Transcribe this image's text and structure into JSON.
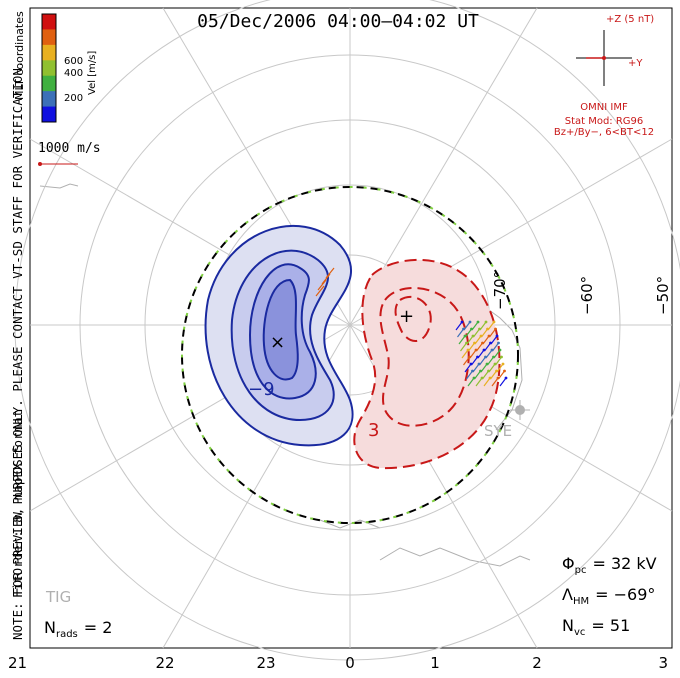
{
  "title": "05/Dec/2006 04:00–04:02 UT",
  "coord_label": "MLT coordinates",
  "scale": {
    "label": "Vel [m/s]",
    "ticks": [
      "200",
      "400",
      "600"
    ],
    "colors": [
      "#1010e0",
      "#3c70b8",
      "#40b040",
      "#90c030",
      "#e8b020",
      "#e06010",
      "#d01010"
    ]
  },
  "reference_vector": "1000 m/s",
  "watermark": "NOTE: FOR PREVIEW PURPOSES ONLY. PLEASE CONTACT VT-SD STAFF FOR VERIFICATION.",
  "fit_order": "FitOrder: 8, mapEX format",
  "imf": {
    "z_label": "+Z (5 nT)",
    "y_label": "+Y",
    "source": "OMNI IMF",
    "model_line1": "Stat Mod: RG96",
    "model_line2": "Bz+/By−, 6<BT<12"
  },
  "stats": {
    "phi_symbol": "Φ",
    "phi_sub": "pc",
    "phi_value": "= 32 kV",
    "lambda_symbol": "Λ",
    "lambda_sub": "HM",
    "lambda_value": "= −69°",
    "n_symbol": "N",
    "n_sub": "vc",
    "n_value": "= 51",
    "nrads_symbol": "N",
    "nrads_sub": "rads",
    "nrads_value": "= 2"
  },
  "stations": [
    "SYE",
    "TIG"
  ],
  "chart_data": {
    "type": "map",
    "mlt_ticks": [
      "21",
      "22",
      "23",
      "0",
      "1",
      "2",
      "3"
    ],
    "lat_labels": [
      "−70°",
      "−60°",
      "−50°"
    ],
    "contours": {
      "negative_labels": [
        "−9"
      ],
      "positive_labels": [
        "3"
      ],
      "potential_min_marker": "×",
      "potential_max_marker": "+"
    },
    "colors": {
      "negative_cell": "#2030a0",
      "positive_cell": "#c82020",
      "grid": "#c8c8c8",
      "boundary_dash": "#80d040"
    }
  }
}
